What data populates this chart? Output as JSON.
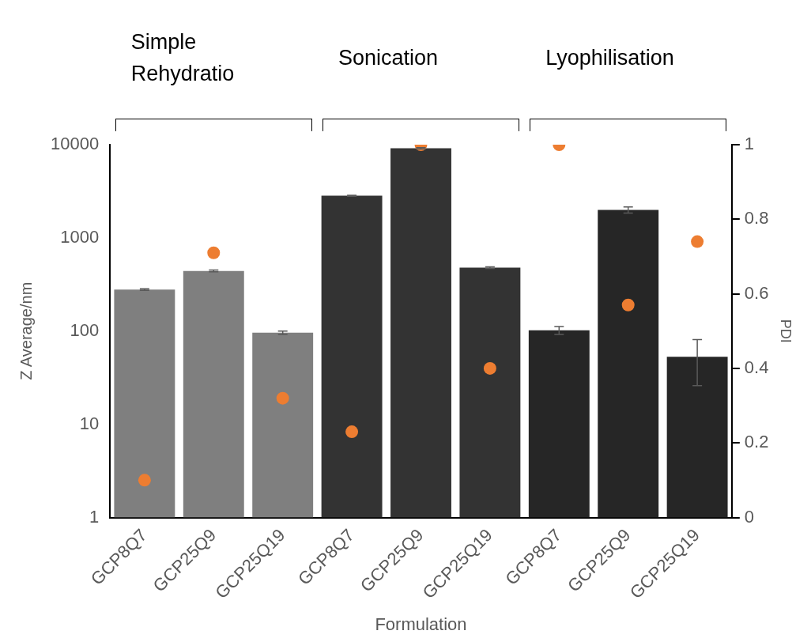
{
  "chart_data": {
    "type": "bar",
    "xlabel": "Formulation",
    "ylabel": "Z Average/nm",
    "y2label": "PDI",
    "categories": [
      "GCP8Q7",
      "GCP25Q9",
      "GCP25Q19",
      "GCP8Q7",
      "GCP25Q9",
      "GCP25Q19",
      "GCP8Q7",
      "GCP25Q9",
      "GCP25Q19"
    ],
    "series": [
      {
        "colors": [
          "#7f7f7f",
          "#7f7f7f",
          "#7f7f7f",
          "#333333",
          "#333333",
          "#333333",
          "#262626",
          "#262626",
          "#262626"
        ],
        "values": [
          279,
          442,
          96,
          2830,
          9150,
          480,
          102,
          2000,
          53
        ],
        "errors": [
          5,
          10,
          4,
          40,
          150,
          10,
          10,
          150,
          [
            26,
            81
          ]
        ]
      },
      {
        "type": "scatter",
        "axis": "y2",
        "color": "#ed7d31",
        "values": [
          0.1,
          0.71,
          0.32,
          0.23,
          1.0,
          0.4,
          1.0,
          0.57,
          0.74
        ]
      }
    ],
    "log": "y",
    "ylim": [
      1,
      10000
    ],
    "yticks": [
      1,
      10,
      100,
      1000,
      10000
    ],
    "y2lim": [
      0,
      1
    ],
    "y2ticks": [
      0,
      0.2,
      0.4,
      0.6,
      0.8,
      1
    ],
    "annotations": [
      "Simple Rehydratio",
      "Sonication",
      "Lyophilisation"
    ],
    "grid": false,
    "legend": false,
    "marker": "circle"
  }
}
